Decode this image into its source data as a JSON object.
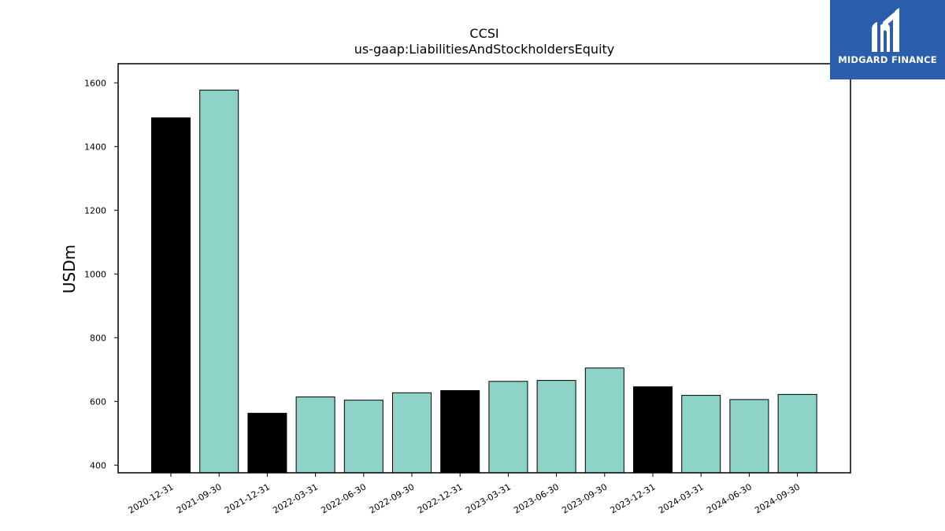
{
  "chart_data": {
    "type": "bar",
    "title": "CCSI",
    "subtitle": "us-gaap:LiabilitiesAndStockholdersEquity",
    "ylabel": "USDm",
    "xlabel": "",
    "ylim": [
      376,
      1660
    ],
    "yticks": [
      400,
      600,
      800,
      1000,
      1200,
      1400,
      1600
    ],
    "categories": [
      "2020-12-31",
      "2021-09-30",
      "2021-12-31",
      "2022-03-31",
      "2022-06-30",
      "2022-09-30",
      "2022-12-31",
      "2023-03-31",
      "2023-06-30",
      "2023-09-30",
      "2023-12-31",
      "2024-03-31",
      "2024-06-30",
      "2024-09-30"
    ],
    "values": [
      1490,
      1577,
      563,
      614,
      604,
      627,
      634,
      663,
      666,
      705,
      646,
      619,
      606,
      622
    ],
    "bar_colors": [
      "#000000",
      "#8dd3c7",
      "#000000",
      "#8dd3c7",
      "#8dd3c7",
      "#8dd3c7",
      "#000000",
      "#8dd3c7",
      "#8dd3c7",
      "#8dd3c7",
      "#000000",
      "#8dd3c7",
      "#8dd3c7",
      "#8dd3c7"
    ],
    "grid": false,
    "legend": "none"
  },
  "logo": {
    "text": "MIDGARD FINANCE",
    "icon": "midgard-logo-icon",
    "background": "#2b5fae"
  }
}
